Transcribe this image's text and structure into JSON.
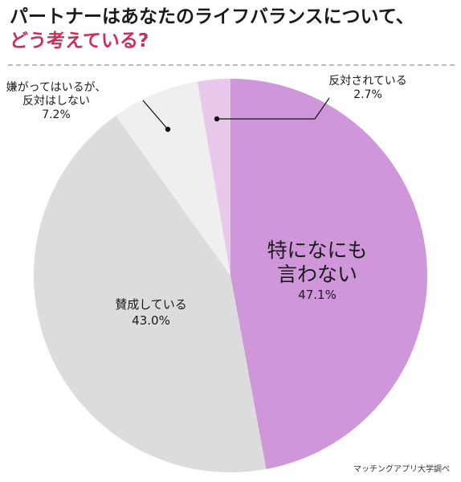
{
  "title": {
    "line1": "パートナーはあなたのライフバランスについて、",
    "line2": "どう考えている?"
  },
  "source": "マッチングアプリ大学調べ",
  "chart_data": {
    "type": "pie",
    "start_angle_deg": 0,
    "direction": "clockwise",
    "slices": [
      {
        "label_lines": [
          "特になにも",
          "言わない"
        ],
        "value": 47.1,
        "value_label": "47.1%",
        "color": "#cf97d9"
      },
      {
        "label_lines": [
          "賛成している"
        ],
        "value": 43.0,
        "value_label": "43.0%",
        "color": "#dcdcdc"
      },
      {
        "label_lines": [
          "嫌がってはいるが、",
          "反対はしない"
        ],
        "value": 7.2,
        "value_label": "7.2%",
        "color": "#efefef"
      },
      {
        "label_lines": [
          "反対されている"
        ],
        "value": 2.7,
        "value_label": "2.7%",
        "color": "#e8c9ec"
      }
    ]
  }
}
